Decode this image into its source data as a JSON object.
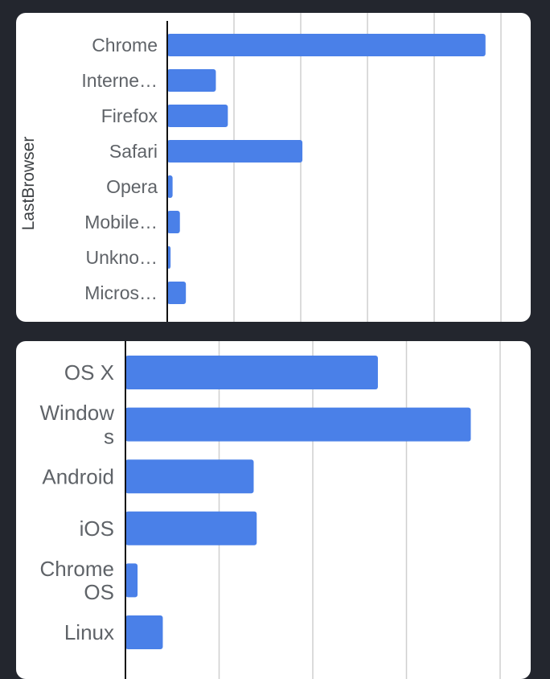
{
  "chart_data": [
    {
      "type": "bar",
      "orientation": "horizontal",
      "ylabel": "LastBrowser",
      "xlabel": "",
      "categories": [
        "Chrome",
        "Interne…",
        "Firefox",
        "Safari",
        "Opera",
        "Mobile…",
        "Unkno…",
        "Micros…"
      ],
      "values": [
        478,
        73,
        91,
        203,
        8,
        19,
        5,
        28
      ],
      "xlim": [
        0,
        500
      ],
      "grid": true,
      "legend": "none",
      "bar_color": "#4a80e8"
    },
    {
      "type": "bar",
      "orientation": "horizontal",
      "ylabel": "",
      "xlabel": "",
      "categories": [
        [
          "OS X"
        ],
        [
          "Window",
          "s"
        ],
        [
          "Android"
        ],
        [
          "iOS"
        ],
        [
          "Chrome",
          "OS"
        ],
        [
          "Linux"
        ]
      ],
      "values": [
        250,
        342,
        127,
        130,
        12,
        37
      ],
      "xlim": [
        0,
        430
      ],
      "grid": true,
      "legend": "none",
      "bar_color": "#4a80e8"
    }
  ]
}
